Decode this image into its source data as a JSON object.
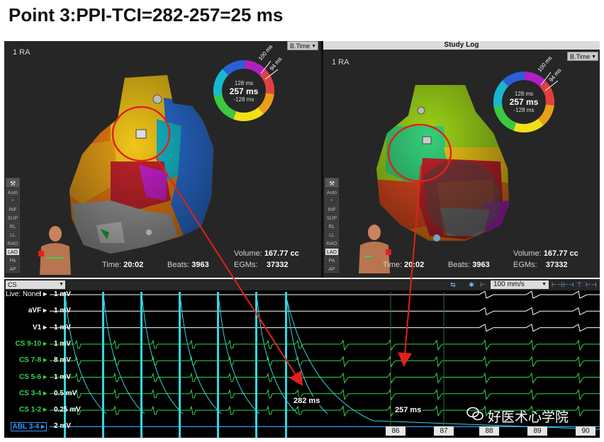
{
  "title": "Point 3:PPI-TCI=282-257=25 ms",
  "left_panel": {
    "label": "1 RA",
    "view_select": "B.Time",
    "ring": {
      "top": "128 ms",
      "main": "257 ms",
      "bottom": "-128 ms",
      "tag1": "100 ms",
      "tag2": "94 ms"
    },
    "stats": {
      "time_label": "Time:",
      "time": "20:02",
      "beats_label": "Beats:",
      "beats": "3963",
      "volume_label": "Volume:",
      "volume": "167.77 cc",
      "egms_label": "EGMs:",
      "egms": "37332"
    }
  },
  "right_panel": {
    "header": "Study Log",
    "label": "1 RA",
    "view_select": "B.Time",
    "ring": {
      "top": "128 ms",
      "main": "257 ms",
      "bottom": "-128 ms",
      "tag1": "100 ms",
      "tag2": "94 ms"
    },
    "stats": {
      "time_label": "Time:",
      "time": "20:02",
      "beats_label": "Beats:",
      "beats": "3963",
      "volume_label": "Volume:",
      "volume": "167.77 cc",
      "egms_label": "EGMs:",
      "egms": "37332"
    }
  },
  "sidebar": [
    "Auto",
    "*",
    "INF",
    "SUP",
    "RL",
    "LL",
    "RAO",
    "LAO",
    "PA",
    "AP"
  ],
  "sidebar_active": "LAO",
  "toolbar": {
    "channel_group": "CS",
    "speed": "100 mm/s"
  },
  "live": "Live: None",
  "channels": [
    {
      "name": "I",
      "scale": "1 mV",
      "color": "#ffffff"
    },
    {
      "name": "aVF",
      "scale": "1 mV",
      "color": "#ffffff"
    },
    {
      "name": "V1",
      "scale": "1 mV",
      "color": "#ffffff"
    },
    {
      "name": "CS 9-10",
      "scale": "1 mV",
      "color": "#31d64c"
    },
    {
      "name": "CS 7-8",
      "scale": "8 mV",
      "color": "#31d64c"
    },
    {
      "name": "CS 5-6",
      "scale": "1 mV",
      "color": "#31d64c"
    },
    {
      "name": "CS 3-4",
      "scale": "0.5 mV",
      "color": "#31d64c"
    },
    {
      "name": "CS 1-2",
      "scale": "0.25 mV",
      "color": "#31d64c"
    },
    {
      "name": "ABL 3-4",
      "scale": "2 mV",
      "color": "#2f9bff"
    }
  ],
  "measurements": {
    "ppi": "282 ms",
    "tci": "257 ms"
  },
  "beat_numbers": [
    "86",
    "87",
    "88",
    "89",
    "90"
  ],
  "watermark": "好医术心学院",
  "colors": {
    "annotation_red": "#e3201b",
    "cs_green": "#31d64c",
    "abl_blue": "#2f9bff",
    "pacing_cyan": "#35d6e0"
  }
}
